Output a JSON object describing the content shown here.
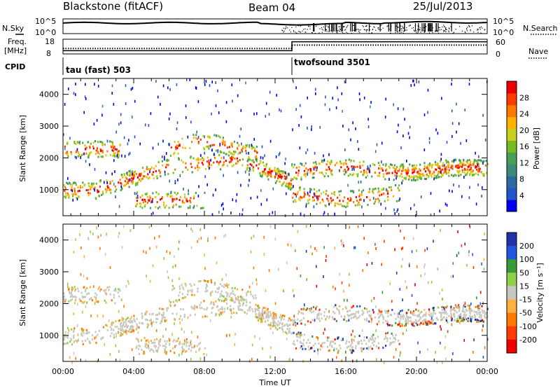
{
  "header": {
    "station": "Blackstone (fitACF)",
    "beam": "Beam 04",
    "date": "25/Jul/2013"
  },
  "chart_data": [
    {
      "type": "line",
      "panel": "noise",
      "left_label": "N.Sky",
      "right_label": "N.Search",
      "left_ticks": [
        "10^5",
        "10^0"
      ],
      "right_ticks": [
        "10^5",
        "10^0"
      ]
    },
    {
      "type": "line",
      "panel": "frequency",
      "left_label_line1": "Freq.",
      "left_label_line2": "[MHz]",
      "right_label": "Nave",
      "left_ticks": [
        18,
        8
      ],
      "right_ticks": [
        60,
        0
      ],
      "series": [
        {
          "name": "Freq.",
          "x": [
            0,
            12.95,
            12.95,
            24
          ],
          "values": [
            10.2,
            10.2,
            16.3,
            16.3
          ]
        },
        {
          "name": "Nave",
          "x": [
            0,
            12.95,
            12.95,
            24
          ],
          "values": [
            22,
            22,
            36,
            36
          ]
        }
      ]
    },
    {
      "type": "table",
      "panel": "cpid",
      "label": "CPID",
      "segments": [
        {
          "name": "tau (fast) 503",
          "start": 0,
          "end": 12.95
        },
        {
          "name": "twofsound 3501",
          "start": 12.95,
          "end": 24
        }
      ]
    },
    {
      "type": "heatmap",
      "panel": "power",
      "ylabel": "Slant Range [km]",
      "xlabel": "Time UT",
      "ylim": [
        180,
        4500
      ],
      "xlim": [
        0,
        24
      ],
      "yticks": [
        1000,
        2000,
        3000,
        4000
      ],
      "xticks": [
        "00:00",
        "04:00",
        "08:00",
        "12:00",
        "16:00",
        "20:00",
        "00:00"
      ],
      "colorbar": {
        "label": "Power [dB]",
        "ticks": [
          4,
          8,
          12,
          16,
          20,
          24,
          28
        ],
        "range": [
          0,
          30
        ],
        "colors": [
          "#0000ee",
          "#2255cc",
          "#2d6b9e",
          "#3c8a7a",
          "#4a9e55",
          "#77bb22",
          "#c8d020",
          "#ffb400",
          "#ff7800",
          "#ff3c00",
          "#ee0000"
        ]
      }
    },
    {
      "type": "heatmap",
      "panel": "velocity",
      "ylabel": "Slant Range [km]",
      "xlabel": "Time UT",
      "ylim": [
        180,
        4500
      ],
      "xlim": [
        0,
        24
      ],
      "yticks": [
        1000,
        2000,
        3000,
        4000
      ],
      "xticks": [
        "00:00",
        "04:00",
        "08:00",
        "12:00",
        "16:00",
        "20:00",
        "00:00"
      ],
      "colorbar": {
        "label": "Velocity [m s⁻¹]",
        "ticks": [
          "200",
          "100",
          "50",
          "15",
          "-15",
          "-50",
          "-100",
          "-200"
        ],
        "colors": [
          "#2233aa",
          "#2255dd",
          "#3a9a3a",
          "#8ed04a",
          "#c8c8be",
          "#ffb040",
          "#ff7a00",
          "#ff3b00",
          "#ee0000"
        ]
      }
    }
  ],
  "time_axis_label": "Time UT"
}
